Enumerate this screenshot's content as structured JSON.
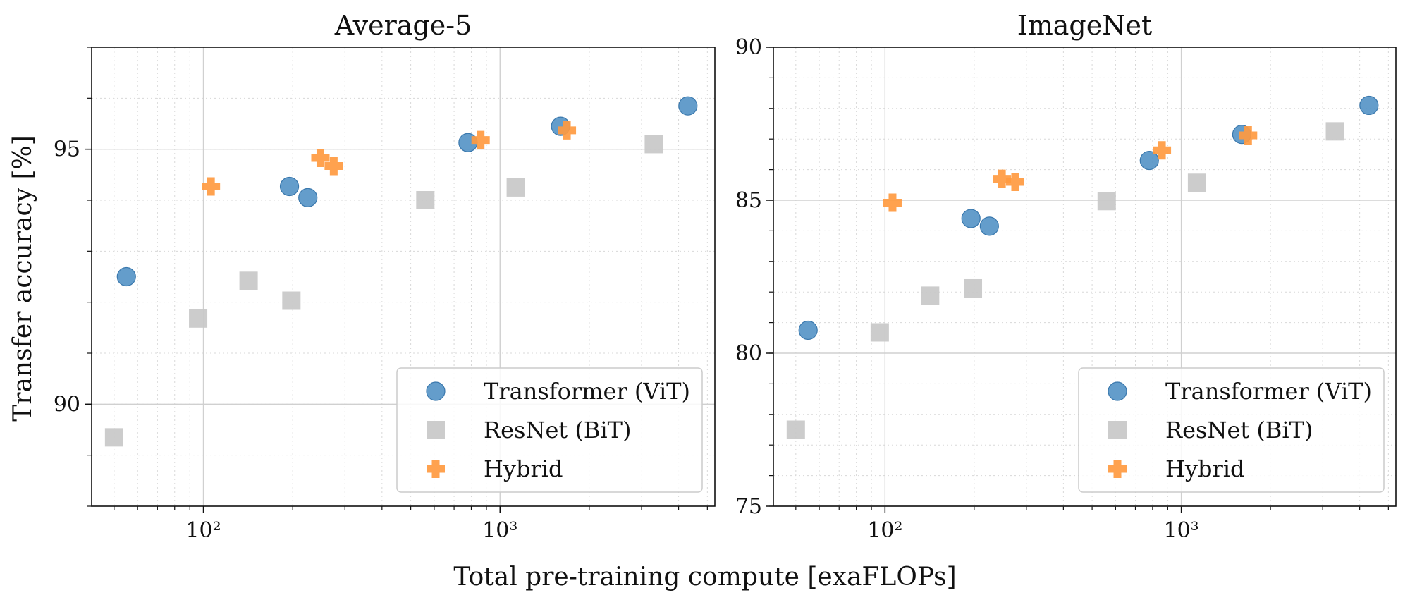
{
  "figure": {
    "xlabel": "Total pre-training compute [exaFLOPs]",
    "ylabel": "Transfer accuracy [%]"
  },
  "legend": {
    "placement": "lower-right",
    "entries": [
      {
        "label": "Transformer (ViT)",
        "marker": "circle",
        "color": "#4e8fc4"
      },
      {
        "label": "ResNet (BiT)",
        "marker": "square",
        "color": "#c8c8c8"
      },
      {
        "label": "Hybrid",
        "marker": "plus",
        "color": "#ff9a40"
      }
    ]
  },
  "chart_data": [
    {
      "type": "scatter",
      "title": "Average-5",
      "xscale": "log",
      "xlim": [
        42,
        5300
      ],
      "ylim": [
        88,
        97
      ],
      "xticks": [
        {
          "value": 100,
          "label": "10²"
        },
        {
          "value": 1000,
          "label": "10³"
        }
      ],
      "yticks": [
        {
          "value": 90,
          "label": "90"
        },
        {
          "value": 95,
          "label": "95"
        }
      ],
      "grid": true,
      "series": [
        {
          "name": "Transformer (ViT)",
          "marker": "circle",
          "color": "#4e8fc4",
          "x": [
            55,
            195,
            225,
            780,
            1600,
            4300
          ],
          "y": [
            92.5,
            94.27,
            94.05,
            95.13,
            95.45,
            95.85
          ]
        },
        {
          "name": "ResNet (BiT)",
          "marker": "square",
          "color": "#c8c8c8",
          "x": [
            50,
            96,
            142,
            198,
            560,
            1130,
            3300
          ],
          "y": [
            89.35,
            91.68,
            92.42,
            92.03,
            94.0,
            94.25,
            95.1
          ]
        },
        {
          "name": "Hybrid",
          "marker": "plus",
          "color": "#ff9a40",
          "x": [
            106,
            248,
            275,
            860,
            1680
          ],
          "y": [
            94.27,
            94.83,
            94.67,
            95.18,
            95.37
          ]
        }
      ]
    },
    {
      "type": "scatter",
      "title": "ImageNet",
      "xscale": "log",
      "xlim": [
        42,
        5300
      ],
      "ylim": [
        75,
        90
      ],
      "xticks": [
        {
          "value": 100,
          "label": "10²"
        },
        {
          "value": 1000,
          "label": "10³"
        }
      ],
      "yticks": [
        {
          "value": 75,
          "label": "75"
        },
        {
          "value": 80,
          "label": "80"
        },
        {
          "value": 85,
          "label": "85"
        },
        {
          "value": 90,
          "label": "90"
        }
      ],
      "grid": true,
      "series": [
        {
          "name": "Transformer (ViT)",
          "marker": "circle",
          "color": "#4e8fc4",
          "x": [
            55,
            195,
            225,
            780,
            1600,
            4300
          ],
          "y": [
            80.75,
            84.4,
            84.15,
            86.3,
            87.15,
            88.1
          ]
        },
        {
          "name": "ResNet (BiT)",
          "marker": "square",
          "color": "#c8c8c8",
          "x": [
            50,
            96,
            142,
            198,
            560,
            1130,
            3300
          ],
          "y": [
            77.5,
            80.68,
            81.88,
            82.12,
            84.97,
            85.57,
            87.25
          ]
        },
        {
          "name": "Hybrid",
          "marker": "plus",
          "color": "#ff9a40",
          "x": [
            106,
            248,
            275,
            860,
            1680
          ],
          "y": [
            84.92,
            85.7,
            85.6,
            86.63,
            87.12
          ]
        }
      ]
    }
  ]
}
